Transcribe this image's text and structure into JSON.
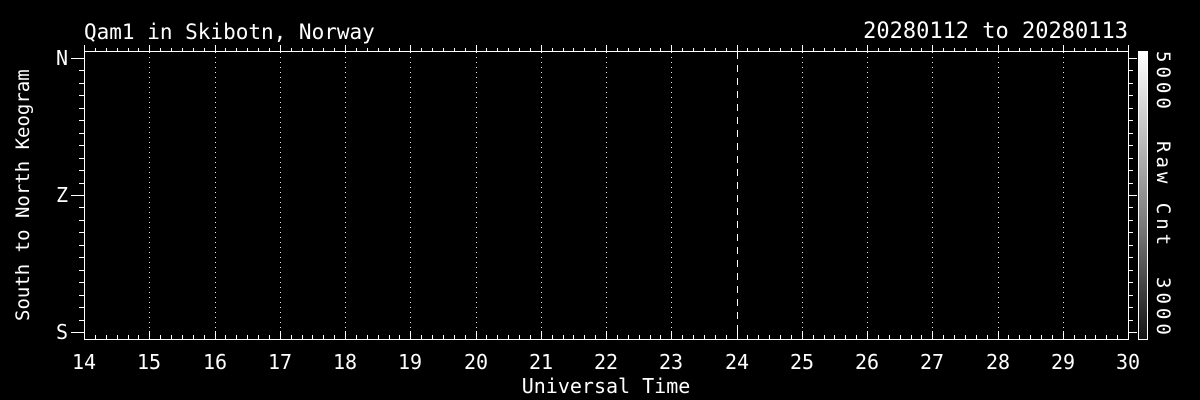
{
  "colors": {
    "background": "#000000",
    "foreground": "#ffffff",
    "grid": "#e8e8e8",
    "colorbar_top": "#ffffff",
    "colorbar_bottom": "#141414"
  },
  "header": {
    "title": "Qam1 in Skibotn, Norway",
    "date_range": "20280112 to 20280113"
  },
  "y_axis": {
    "title": "South to North Keogram",
    "ticks": [
      "N",
      "Z",
      "S"
    ]
  },
  "x_axis": {
    "title": "Universal Time",
    "ticks": [
      "14",
      "15",
      "16",
      "17",
      "18",
      "19",
      "20",
      "21",
      "22",
      "23",
      "24",
      "25",
      "26",
      "27",
      "28",
      "29",
      "30"
    ],
    "dashed_line_at": "24"
  },
  "colorbar": {
    "title": "Raw Cnt",
    "max_label": "5000",
    "min_label": "3000"
  },
  "chart_data": {
    "type": "heatmap",
    "title": "Qam1 in Skibotn, Norway",
    "subtitle": "20280112 to 20280113",
    "xlabel": "Universal Time",
    "ylabel": "South to North Keogram",
    "x_ticks": [
      14,
      15,
      16,
      17,
      18,
      19,
      20,
      21,
      22,
      23,
      24,
      25,
      26,
      27,
      28,
      29,
      30
    ],
    "xlim": [
      14,
      30
    ],
    "x_minor_tick_minutes": 10,
    "y_tick_labels": [
      "N",
      "Z",
      "S"
    ],
    "grid": {
      "style": "dotted",
      "vertical_at_hours": [
        15,
        16,
        17,
        18,
        19,
        20,
        21,
        22,
        23,
        25,
        26,
        27,
        28,
        29
      ]
    },
    "dashed_marker_hour": 24,
    "colorbar": {
      "label": "Raw Cnt",
      "min": 3000,
      "max": 5000,
      "scale": "grayscale-linear"
    },
    "values": [],
    "visible_data": "none - plot area is empty black"
  }
}
